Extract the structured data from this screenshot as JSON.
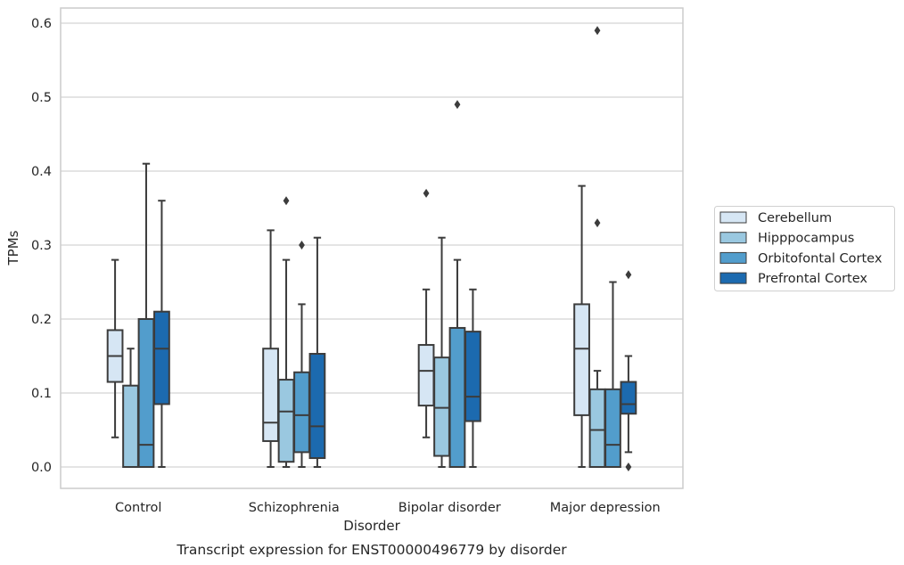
{
  "chart_data": {
    "type": "box",
    "title": "",
    "xlabel": "Disorder",
    "ylabel": "TPMs",
    "caption": "Transcript expression for ENST00000496779 by disorder",
    "ylim": [
      -0.028,
      0.62
    ],
    "yticks": [
      0.0,
      0.1,
      0.2,
      0.3,
      0.4,
      0.5,
      0.6
    ],
    "ytick_labels": [
      "0.0",
      "0.1",
      "0.2",
      "0.3",
      "0.4",
      "0.5",
      "0.6"
    ],
    "categories": [
      "Control",
      "Schizophrenia",
      "Bipolar disorder",
      "Major depression"
    ],
    "grid": "horizontal",
    "legend_position": "right",
    "series": [
      {
        "name": "Cerebellum",
        "color": "#d6e6f4",
        "boxes": [
          {
            "whisker_low": 0.04,
            "q1": 0.115,
            "median": 0.15,
            "q3": 0.185,
            "whisker_high": 0.28,
            "outliers": []
          },
          {
            "whisker_low": 0.0,
            "q1": 0.035,
            "median": 0.06,
            "q3": 0.16,
            "whisker_high": 0.32,
            "outliers": []
          },
          {
            "whisker_low": 0.04,
            "q1": 0.083,
            "median": 0.13,
            "q3": 0.165,
            "whisker_high": 0.24,
            "outliers": [
              0.37
            ]
          },
          {
            "whisker_low": 0.0,
            "q1": 0.07,
            "median": 0.16,
            "q3": 0.22,
            "whisker_high": 0.38,
            "outliers": []
          }
        ]
      },
      {
        "name": "Hipppocampus",
        "color": "#9ac8e0",
        "boxes": [
          {
            "whisker_low": 0.0,
            "q1": 0.0,
            "median": 0.0,
            "q3": 0.11,
            "whisker_high": 0.16,
            "outliers": []
          },
          {
            "whisker_low": 0.0,
            "q1": 0.007,
            "median": 0.075,
            "q3": 0.118,
            "whisker_high": 0.28,
            "outliers": [
              0.36
            ]
          },
          {
            "whisker_low": 0.0,
            "q1": 0.015,
            "median": 0.08,
            "q3": 0.148,
            "whisker_high": 0.31,
            "outliers": []
          },
          {
            "whisker_low": 0.0,
            "q1": 0.0,
            "median": 0.05,
            "q3": 0.105,
            "whisker_high": 0.13,
            "outliers": [
              0.33,
              0.59
            ]
          }
        ]
      },
      {
        "name": "Orbitofontal Cortex",
        "color": "#529dcc",
        "boxes": [
          {
            "whisker_low": 0.0,
            "q1": 0.0,
            "median": 0.03,
            "q3": 0.2,
            "whisker_high": 0.41,
            "outliers": []
          },
          {
            "whisker_low": 0.0,
            "q1": 0.02,
            "median": 0.07,
            "q3": 0.128,
            "whisker_high": 0.22,
            "outliers": [
              0.3
            ]
          },
          {
            "whisker_low": 0.0,
            "q1": 0.0,
            "median": 0.0,
            "q3": 0.188,
            "whisker_high": 0.28,
            "outliers": [
              0.49
            ]
          },
          {
            "whisker_low": 0.0,
            "q1": 0.0,
            "median": 0.03,
            "q3": 0.105,
            "whisker_high": 0.25,
            "outliers": []
          }
        ]
      },
      {
        "name": "Prefrontal Cortex",
        "color": "#1c6aaf",
        "boxes": [
          {
            "whisker_low": 0.0,
            "q1": 0.085,
            "median": 0.16,
            "q3": 0.21,
            "whisker_high": 0.36,
            "outliers": []
          },
          {
            "whisker_low": 0.0,
            "q1": 0.012,
            "median": 0.055,
            "q3": 0.153,
            "whisker_high": 0.31,
            "outliers": []
          },
          {
            "whisker_low": 0.0,
            "q1": 0.062,
            "median": 0.095,
            "q3": 0.183,
            "whisker_high": 0.24,
            "outliers": []
          },
          {
            "whisker_low": 0.02,
            "q1": 0.072,
            "median": 0.085,
            "q3": 0.115,
            "whisker_high": 0.15,
            "outliers": [
              0.0,
              0.26
            ]
          }
        ]
      }
    ]
  }
}
